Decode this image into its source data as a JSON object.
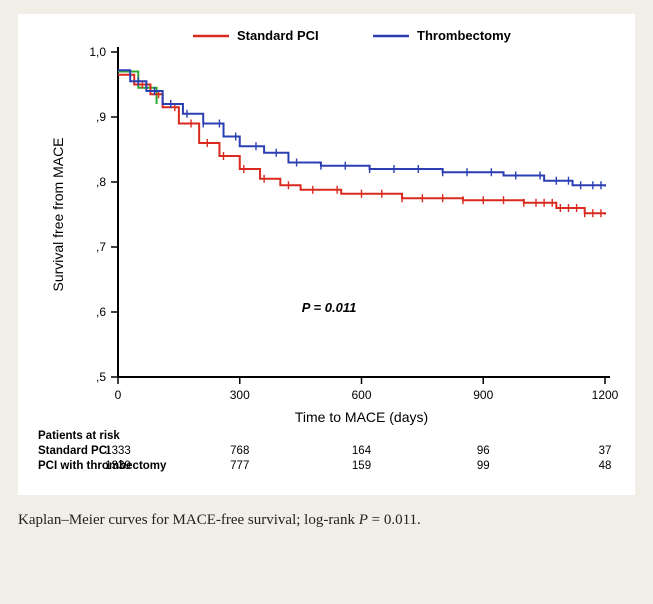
{
  "chart": {
    "type": "kaplan-meier",
    "background_color": "#ffffff",
    "page_background": "#f0eee7",
    "title": null,
    "p_value_label": "P = 0.011",
    "p_value_fontsize": 13,
    "p_value_fontweight": "bold",
    "p_value_fontstyle": "italic",
    "axes": {
      "xlabel": "Time to MACE (days)",
      "ylabel": "Survival free from MACE",
      "label_fontsize": 14,
      "xlim": [
        0,
        1200
      ],
      "xticks": [
        0,
        300,
        600,
        900,
        1200
      ],
      "ylim": [
        0.5,
        1.0
      ],
      "yticks": [
        0.5,
        0.6,
        0.7,
        0.8,
        0.9,
        1.0
      ],
      "ytick_labels": [
        ",5",
        ",6",
        ",7",
        ",8",
        ",9",
        "1,0"
      ],
      "tick_fontsize": 12,
      "axis_color": "#000000",
      "axis_width": 2
    },
    "series": [
      {
        "name": "Standard PCI",
        "legend_label": "Standard PCI",
        "color": "#d92a1f",
        "line_width": 2,
        "points": [
          {
            "x": 0,
            "y": 0.965
          },
          {
            "x": 40,
            "y": 0.95
          },
          {
            "x": 80,
            "y": 0.935
          },
          {
            "x": 110,
            "y": 0.915
          },
          {
            "x": 150,
            "y": 0.89
          },
          {
            "x": 200,
            "y": 0.86
          },
          {
            "x": 250,
            "y": 0.84
          },
          {
            "x": 300,
            "y": 0.82
          },
          {
            "x": 350,
            "y": 0.805
          },
          {
            "x": 400,
            "y": 0.795
          },
          {
            "x": 450,
            "y": 0.788
          },
          {
            "x": 550,
            "y": 0.782
          },
          {
            "x": 700,
            "y": 0.775
          },
          {
            "x": 850,
            "y": 0.772
          },
          {
            "x": 1000,
            "y": 0.768
          },
          {
            "x": 1080,
            "y": 0.76
          },
          {
            "x": 1150,
            "y": 0.752
          },
          {
            "x": 1200,
            "y": 0.75
          }
        ],
        "censor_x": [
          60,
          100,
          140,
          180,
          220,
          260,
          310,
          360,
          420,
          480,
          540,
          600,
          650,
          700,
          750,
          800,
          850,
          900,
          950,
          1000,
          1030,
          1050,
          1070,
          1090,
          1110,
          1130,
          1150,
          1170,
          1190
        ]
      },
      {
        "name": "Thrombectomy",
        "legend_label": "Thrombectomy",
        "color": "#2b3fb3",
        "line_width": 2,
        "points": [
          {
            "x": 0,
            "y": 0.972
          },
          {
            "x": 30,
            "y": 0.955
          },
          {
            "x": 70,
            "y": 0.94
          },
          {
            "x": 110,
            "y": 0.92
          },
          {
            "x": 160,
            "y": 0.905
          },
          {
            "x": 210,
            "y": 0.89
          },
          {
            "x": 260,
            "y": 0.87
          },
          {
            "x": 300,
            "y": 0.855
          },
          {
            "x": 360,
            "y": 0.845
          },
          {
            "x": 420,
            "y": 0.83
          },
          {
            "x": 500,
            "y": 0.825
          },
          {
            "x": 620,
            "y": 0.82
          },
          {
            "x": 800,
            "y": 0.815
          },
          {
            "x": 950,
            "y": 0.81
          },
          {
            "x": 1050,
            "y": 0.802
          },
          {
            "x": 1120,
            "y": 0.795
          },
          {
            "x": 1200,
            "y": 0.793
          }
        ],
        "censor_x": [
          50,
          90,
          130,
          170,
          210,
          250,
          290,
          340,
          390,
          440,
          500,
          560,
          620,
          680,
          740,
          800,
          860,
          920,
          980,
          1040,
          1080,
          1110,
          1140,
          1170,
          1190
        ]
      }
    ],
    "risk_table": {
      "title": "Patients at risk",
      "title_fontweight": "bold",
      "fontsize": 11.5,
      "times": [
        0,
        300,
        600,
        900,
        1200
      ],
      "rows": [
        {
          "label": "Standard PCI",
          "values": [
            1333,
            768,
            164,
            96,
            37
          ]
        },
        {
          "label": "PCI with thrombectomy",
          "values": [
            1339,
            777,
            159,
            99,
            48
          ]
        }
      ]
    },
    "legend": {
      "items": [
        {
          "label": "Standard PCI",
          "color": "#d92a1f"
        },
        {
          "label": "Thrombectomy",
          "color": "#2b3fb3"
        }
      ],
      "fontsize": 13,
      "fontweight": "bold"
    },
    "initial_drop_green_color": "#2fa82f"
  },
  "caption": {
    "prefix": "Kaplan–Meier curves for MACE-free survival; log-rank ",
    "p_var": "P",
    "p_eq": " = 0.011."
  }
}
